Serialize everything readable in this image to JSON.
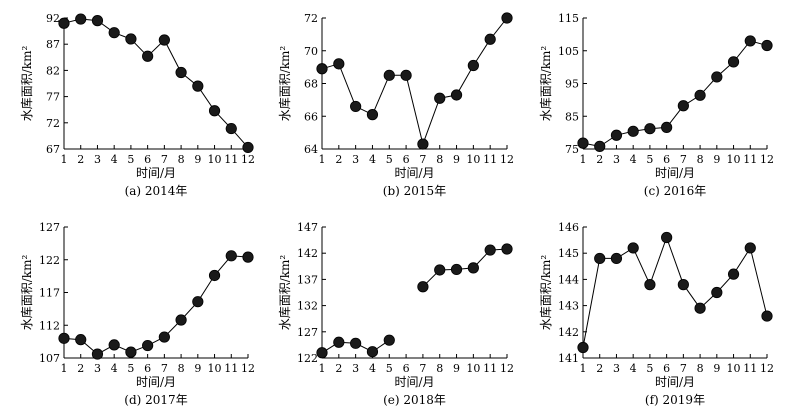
{
  "chart_data": [
    {
      "type": "line",
      "caption": "(a) 2014年",
      "xlabel": "时间/月",
      "ylabel": "水库面积/km²",
      "x": [
        1,
        2,
        3,
        4,
        5,
        6,
        7,
        8,
        9,
        10,
        11,
        12
      ],
      "yticks": [
        67,
        72,
        77,
        82,
        87,
        92
      ],
      "ylim": [
        67,
        92
      ],
      "segments": [
        [
          0,
          11
        ]
      ],
      "values": [
        91.0,
        91.8,
        91.5,
        89.2,
        88.0,
        84.7,
        87.8,
        81.6,
        79.0,
        74.3,
        70.9,
        67.3
      ]
    },
    {
      "type": "line",
      "caption": "(b) 2015年",
      "xlabel": "时间/月",
      "ylabel": "水库面积/km²",
      "x": [
        1,
        2,
        3,
        4,
        5,
        6,
        7,
        8,
        9,
        10,
        11,
        12
      ],
      "yticks": [
        64,
        66,
        68,
        70,
        72
      ],
      "ylim": [
        64,
        72
      ],
      "segments": [
        [
          0,
          11
        ]
      ],
      "values": [
        68.9,
        69.2,
        66.6,
        66.1,
        68.5,
        68.5,
        64.3,
        67.1,
        67.3,
        69.1,
        70.7,
        72.0
      ]
    },
    {
      "type": "line",
      "caption": "(c) 2016年",
      "xlabel": "时间/月",
      "ylabel": "水库面积/km²",
      "x": [
        1,
        2,
        3,
        4,
        5,
        6,
        7,
        8,
        9,
        10,
        11,
        12
      ],
      "yticks": [
        75,
        85,
        95,
        105,
        115
      ],
      "ylim": [
        75,
        115
      ],
      "segments": [
        [
          0,
          11
        ]
      ],
      "values": [
        76.8,
        75.8,
        79.2,
        80.4,
        81.2,
        81.6,
        88.2,
        91.4,
        97.0,
        101.6,
        108.0,
        106.6
      ]
    },
    {
      "type": "line",
      "caption": "(d) 2017年",
      "xlabel": "时间/月",
      "ylabel": "水库面积/km²",
      "x": [
        1,
        2,
        3,
        4,
        5,
        6,
        7,
        8,
        9,
        10,
        11,
        12
      ],
      "yticks": [
        107,
        112,
        117,
        122,
        127
      ],
      "ylim": [
        107,
        127
      ],
      "segments": [
        [
          0,
          11
        ]
      ],
      "values": [
        110.0,
        109.8,
        107.6,
        109.0,
        107.9,
        108.9,
        110.2,
        112.8,
        115.6,
        119.6,
        122.6,
        122.4
      ]
    },
    {
      "type": "line",
      "caption": "(e) 2018年",
      "xlabel": "时间/月",
      "ylabel": "水库面积/km²",
      "x": [
        1,
        2,
        3,
        4,
        5,
        6,
        7,
        8,
        9,
        10,
        11,
        12
      ],
      "yticks": [
        122,
        127,
        132,
        137,
        142,
        147
      ],
      "ylim": [
        122,
        147
      ],
      "segments": [
        [
          0,
          4
        ],
        [
          6,
          11
        ]
      ],
      "values": [
        123.0,
        125.0,
        124.8,
        123.2,
        125.4,
        null,
        135.6,
        138.8,
        138.9,
        139.2,
        142.6,
        142.8
      ]
    },
    {
      "type": "line",
      "caption": "(f) 2019年",
      "xlabel": "时间/月",
      "ylabel": "水库面积/km²",
      "x": [
        1,
        2,
        3,
        4,
        5,
        6,
        7,
        8,
        9,
        10,
        11,
        12
      ],
      "yticks": [
        141,
        142,
        143,
        144,
        145,
        146
      ],
      "ylim": [
        141,
        146
      ],
      "segments": [
        [
          0,
          11
        ]
      ],
      "values": [
        141.4,
        144.8,
        144.8,
        145.2,
        143.8,
        145.6,
        143.8,
        142.9,
        143.5,
        144.2,
        145.2,
        142.6
      ]
    }
  ]
}
